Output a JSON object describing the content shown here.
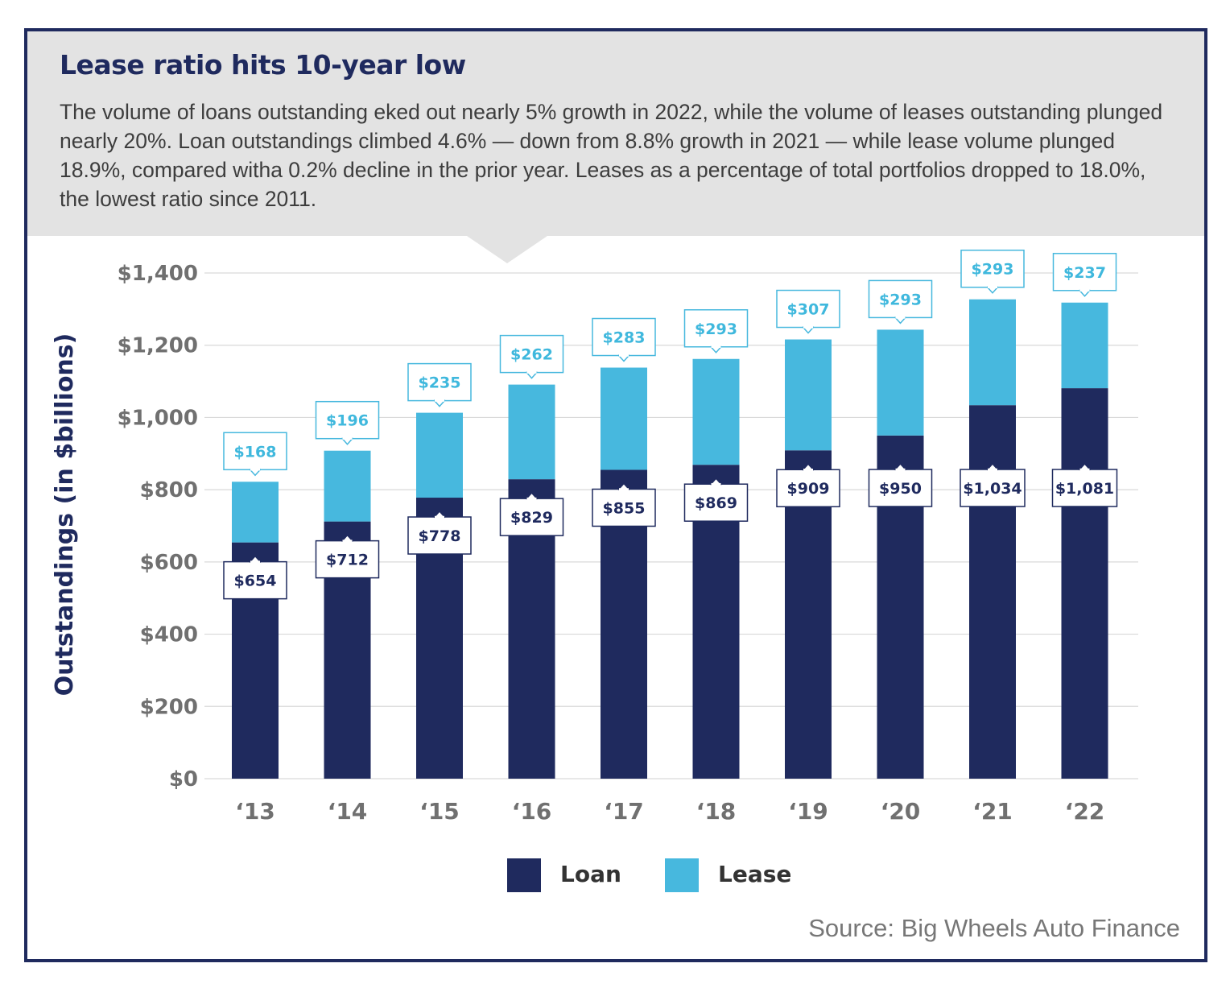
{
  "header": {
    "title": "Lease ratio hits 10-year low",
    "subtitle": "The volume of loans outstanding eked out nearly 5% growth in 2022, while the volume of leases outstanding plunged nearly 20%. Loan outstandings climbed 4.6% — down from 8.8% growth in 2021 — while lease volume plunged 18.9%, compared witha 0.2% decline in the prior year. Leases as a percentage of total portfolios dropped to 18.0%, the lowest ratio since 2011."
  },
  "source": "Source: Big Wheels Auto Finance",
  "colors": {
    "loan": "#1f2a5e",
    "lease": "#47b8de",
    "frame": "#1f2a5e",
    "header_bg": "#e3e3e3",
    "grid": "#d9d9d9"
  },
  "chart_data": {
    "type": "bar",
    "stacked": true,
    "categories": [
      "‘13",
      "‘14",
      "‘15",
      "‘16",
      "‘17",
      "‘18",
      "‘19",
      "‘20",
      "‘21",
      "‘22"
    ],
    "series": [
      {
        "name": "Loan",
        "values": [
          654,
          712,
          778,
          829,
          855,
          869,
          909,
          950,
          1034,
          1081
        ],
        "labels": [
          "$654",
          "$712",
          "$778",
          "$829",
          "$855",
          "$869",
          "$909",
          "$950",
          "$1,034",
          "$1,081"
        ]
      },
      {
        "name": "Lease",
        "values": [
          168,
          196,
          235,
          262,
          283,
          293,
          307,
          293,
          293,
          237
        ],
        "labels": [
          "$168",
          "$196",
          "$235",
          "$262",
          "$283",
          "$293",
          "$307",
          "$293",
          "$293",
          "$237"
        ]
      }
    ],
    "ylabel": "Outstandings (in $billions)",
    "ylim": [
      0,
      1400
    ],
    "yticks": [
      0,
      200,
      400,
      600,
      800,
      1000,
      1200,
      1400
    ],
    "ytick_labels": [
      "$0",
      "$200",
      "$400",
      "$600",
      "$800",
      "$1,000",
      "$1,200",
      "$1,400"
    ],
    "grid": true,
    "legend_position": "bottom-center"
  }
}
